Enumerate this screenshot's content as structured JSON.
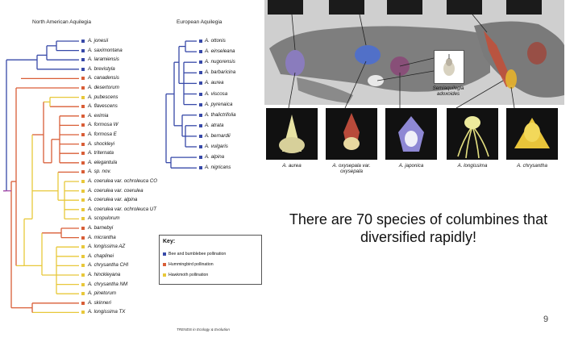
{
  "headers": {
    "north_american": "North American Aquilegia",
    "european": "European Aquilegia"
  },
  "colors": {
    "bee": "#3749a8",
    "hummingbird": "#d95e37",
    "hawkmoth": "#e8c83a",
    "root": "#a44aa8"
  },
  "na_species": [
    {
      "label": "A. jonesii",
      "pollinator": "bee"
    },
    {
      "label": "A. saximontana",
      "pollinator": "bee"
    },
    {
      "label": "A. laramiensis",
      "pollinator": "bee"
    },
    {
      "label": "A. brevistyla",
      "pollinator": "bee"
    },
    {
      "label": "A. canadensis",
      "pollinator": "hummingbird"
    },
    {
      "label": "A. desertorum",
      "pollinator": "hummingbird"
    },
    {
      "label": "A. pubescens",
      "pollinator": "hawkmoth"
    },
    {
      "label": "A. flavescens",
      "pollinator": "hummingbird"
    },
    {
      "label": "A. eximia",
      "pollinator": "hummingbird"
    },
    {
      "label": "A. formosa W",
      "pollinator": "hummingbird"
    },
    {
      "label": "A. formosa E",
      "pollinator": "hummingbird"
    },
    {
      "label": "A. shockleyi",
      "pollinator": "hummingbird"
    },
    {
      "label": "A. triternata",
      "pollinator": "hummingbird"
    },
    {
      "label": "A. elegantula",
      "pollinator": "hummingbird"
    },
    {
      "label": "A. sp. nov.",
      "pollinator": "hummingbird"
    },
    {
      "label": "A. coerulea var. ochroleuca CO",
      "pollinator": "hawkmoth"
    },
    {
      "label": "A. coerulea var. coerulea",
      "pollinator": "hawkmoth"
    },
    {
      "label": "A. coerulea var. alpina",
      "pollinator": "hawkmoth"
    },
    {
      "label": "A. coerulea var. ochroleuca UT",
      "pollinator": "hawkmoth"
    },
    {
      "label": "A. scopulorum",
      "pollinator": "hawkmoth"
    },
    {
      "label": "A. barnebyi",
      "pollinator": "hummingbird"
    },
    {
      "label": "A. micrantha",
      "pollinator": "hummingbird"
    },
    {
      "label": "A. longissima AZ",
      "pollinator": "hawkmoth"
    },
    {
      "label": "A. chaplinei",
      "pollinator": "hawkmoth"
    },
    {
      "label": "A. chrysantha CHI",
      "pollinator": "hawkmoth"
    },
    {
      "label": "A. hinckleyana",
      "pollinator": "hawkmoth"
    },
    {
      "label": "A. chrysantha NM",
      "pollinator": "hawkmoth"
    },
    {
      "label": "A. pinetorum",
      "pollinator": "hawkmoth"
    },
    {
      "label": "A. skinneri",
      "pollinator": "hummingbird"
    },
    {
      "label": "A. longissima TX",
      "pollinator": "hawkmoth"
    }
  ],
  "eu_species": [
    {
      "label": "A. ottonis",
      "pollinator": "bee"
    },
    {
      "label": "A. einseleana",
      "pollinator": "bee"
    },
    {
      "label": "A. nugorensis",
      "pollinator": "bee"
    },
    {
      "label": "A. barbaricina",
      "pollinator": "bee"
    },
    {
      "label": "A. aurea",
      "pollinator": "bee"
    },
    {
      "label": "A. viscosa",
      "pollinator": "bee"
    },
    {
      "label": "A. pyrenaica",
      "pollinator": "bee"
    },
    {
      "label": "A. thalictrifolia",
      "pollinator": "bee"
    },
    {
      "label": "A. atrata",
      "pollinator": "bee"
    },
    {
      "label": "A. bernardii",
      "pollinator": "bee"
    },
    {
      "label": "A. vulgaris",
      "pollinator": "bee"
    },
    {
      "label": "A. alpina",
      "pollinator": "bee"
    },
    {
      "label": "A. nigricans",
      "pollinator": "bee"
    }
  ],
  "key": {
    "title": "Key:",
    "items": [
      {
        "label": "Bee and bumblebee pollination",
        "pollinator": "bee"
      },
      {
        "label": "Hummingbird pollination",
        "pollinator": "hummingbird"
      },
      {
        "label": "Hawkmoth pollination",
        "pollinator": "hawkmoth"
      }
    ]
  },
  "source": "TRENDS in Ecology & Evolution",
  "map": {
    "inset_label": "Semiaquilegia adoxoides"
  },
  "photos": [
    {
      "caption": "A. aurea"
    },
    {
      "caption": "A. oxysepala var. oxysepala"
    },
    {
      "caption": "A. japonica"
    },
    {
      "caption": "A. longissima"
    },
    {
      "caption": "A. chrysantha"
    }
  ],
  "headline": "There are 70 species of columbines that diversified rapidly!",
  "page_number": "9"
}
